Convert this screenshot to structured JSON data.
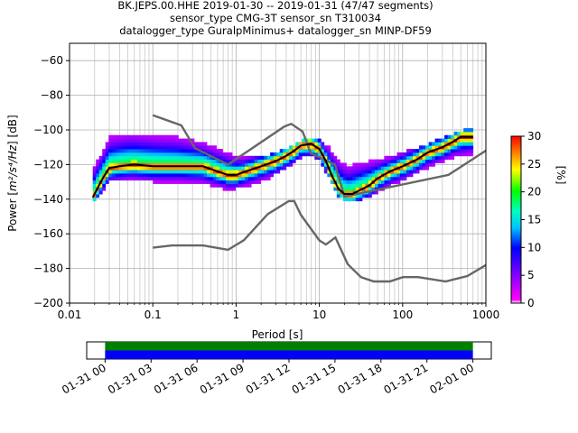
{
  "chart_data": [
    {
      "type": "ppsd_heatmap",
      "title_lines": [
        "BK.JEPS.00.HHE   2019-01-30 -- 2019-01-31  (47/47 segments)",
        "sensor_type CMG-3T sensor_sn T310034",
        "datalogger_type GuralpMinimus+ datalogger_sn MINP-DF59"
      ],
      "xlabel": "Period [s]",
      "ylabel_pre": "Power [",
      "ylabel_math": "m²/s⁴/Hz",
      "ylabel_post": "] [dB]",
      "xscale": "log",
      "xlim": [
        0.01,
        1000
      ],
      "ylim": [
        -200,
        -50
      ],
      "xticks": [
        {
          "v": 0.01,
          "label": "0.01"
        },
        {
          "v": 0.1,
          "label": "0.1"
        },
        {
          "v": 1,
          "label": "1"
        },
        {
          "v": 10,
          "label": "10"
        },
        {
          "v": 100,
          "label": "100"
        },
        {
          "v": 1000,
          "label": "1000"
        }
      ],
      "yticks": [
        {
          "v": -60,
          "label": "−60"
        },
        {
          "v": -80,
          "label": "−80"
        },
        {
          "v": -100,
          "label": "−100"
        },
        {
          "v": -120,
          "label": "−120"
        },
        {
          "v": -140,
          "label": "−140"
        },
        {
          "v": -160,
          "label": "−160"
        },
        {
          "v": -180,
          "label": "−180"
        },
        {
          "v": -200,
          "label": "−200"
        }
      ],
      "grid": true,
      "colorbar": {
        "label": "[%]",
        "range": [
          0,
          30
        ],
        "ticks": [
          {
            "v": 0,
            "label": "0"
          },
          {
            "v": 5,
            "label": "5"
          },
          {
            "v": 10,
            "label": "10"
          },
          {
            "v": 15,
            "label": "15"
          },
          {
            "v": 20,
            "label": "20"
          },
          {
            "v": 25,
            "label": "25"
          },
          {
            "v": 30,
            "label": "30"
          }
        ],
        "colormap_stops": [
          {
            "t": 0.0,
            "color": "#ffffff"
          },
          {
            "t": 0.02,
            "color": "#ff00ff"
          },
          {
            "t": 0.17,
            "color": "#8000ff"
          },
          {
            "t": 0.33,
            "color": "#0000ff"
          },
          {
            "t": 0.45,
            "color": "#00c0ff"
          },
          {
            "t": 0.55,
            "color": "#00ffc0"
          },
          {
            "t": 0.67,
            "color": "#00ff00"
          },
          {
            "t": 0.8,
            "color": "#ffff00"
          },
          {
            "t": 0.9,
            "color": "#ff8000"
          },
          {
            "t": 1.0,
            "color": "#ff0000"
          }
        ]
      },
      "mode_curve": {
        "color": "#000000",
        "points": [
          [
            0.019,
            -139
          ],
          [
            0.022,
            -133
          ],
          [
            0.025,
            -128
          ],
          [
            0.03,
            -122
          ],
          [
            0.04,
            -121
          ],
          [
            0.06,
            -120
          ],
          [
            0.1,
            -121
          ],
          [
            0.2,
            -121
          ],
          [
            0.4,
            -121
          ],
          [
            0.6,
            -124
          ],
          [
            0.8,
            -126
          ],
          [
            1.0,
            -126
          ],
          [
            1.3,
            -124
          ],
          [
            2,
            -121
          ],
          [
            3,
            -118
          ],
          [
            4,
            -115
          ],
          [
            5,
            -112
          ],
          [
            6,
            -109
          ],
          [
            8,
            -108
          ],
          [
            10,
            -111
          ],
          [
            12,
            -118
          ],
          [
            14,
            -126
          ],
          [
            17,
            -134
          ],
          [
            20,
            -137
          ],
          [
            25,
            -137
          ],
          [
            30,
            -135
          ],
          [
            40,
            -132
          ],
          [
            50,
            -128
          ],
          [
            70,
            -124
          ],
          [
            100,
            -121
          ],
          [
            150,
            -117
          ],
          [
            200,
            -113
          ],
          [
            300,
            -110
          ],
          [
            400,
            -107
          ],
          [
            500,
            -104
          ],
          [
            700,
            -104
          ]
        ]
      },
      "density_bands": [
        {
          "x": 0.019,
          "lo": -143,
          "hi": -122
        },
        {
          "x": 0.025,
          "lo": -135,
          "hi": -112
        },
        {
          "x": 0.03,
          "lo": -130,
          "hi": -104
        },
        {
          "x": 0.05,
          "lo": -129,
          "hi": -102
        },
        {
          "x": 0.1,
          "lo": -130,
          "hi": -103
        },
        {
          "x": 0.2,
          "lo": -130,
          "hi": -104
        },
        {
          "x": 0.4,
          "lo": -131,
          "hi": -107
        },
        {
          "x": 0.7,
          "lo": -134,
          "hi": -112
        },
        {
          "x": 1.0,
          "lo": -134,
          "hi": -115
        },
        {
          "x": 1.5,
          "lo": -132,
          "hi": -116
        },
        {
          "x": 2.5,
          "lo": -128,
          "hi": -114
        },
        {
          "x": 4,
          "lo": -122,
          "hi": -111
        },
        {
          "x": 6,
          "lo": -116,
          "hi": -106
        },
        {
          "x": 8,
          "lo": -114,
          "hi": -105
        },
        {
          "x": 10,
          "lo": -118,
          "hi": -106
        },
        {
          "x": 13,
          "lo": -128,
          "hi": -110
        },
        {
          "x": 17,
          "lo": -139,
          "hi": -117
        },
        {
          "x": 22,
          "lo": -142,
          "hi": -121
        },
        {
          "x": 30,
          "lo": -141,
          "hi": -119
        },
        {
          "x": 50,
          "lo": -136,
          "hi": -117
        },
        {
          "x": 100,
          "lo": -129,
          "hi": -113
        },
        {
          "x": 200,
          "lo": -122,
          "hi": -108
        },
        {
          "x": 400,
          "lo": -116,
          "hi": -102
        },
        {
          "x": 700,
          "lo": -114,
          "hi": -98
        }
      ],
      "noise_models": {
        "color": "#666666",
        "high": [
          [
            0.1,
            -91.5
          ],
          [
            0.22,
            -97.4
          ],
          [
            0.32,
            -110.5
          ],
          [
            0.8,
            -120
          ],
          [
            3.8,
            -98
          ],
          [
            4.6,
            -96.5
          ],
          [
            6.3,
            -101
          ],
          [
            7.9,
            -113.5
          ],
          [
            15.4,
            -120
          ],
          [
            20,
            -138.5
          ],
          [
            354.8,
            -126
          ],
          [
            1000,
            -112
          ]
        ],
        "low": [
          [
            0.1,
            -168
          ],
          [
            0.17,
            -166.7
          ],
          [
            0.4,
            -166.7
          ],
          [
            0.8,
            -169.2
          ],
          [
            1.24,
            -163.7
          ],
          [
            2.4,
            -148.6
          ],
          [
            4.3,
            -141.1
          ],
          [
            5,
            -141.1
          ],
          [
            6,
            -149
          ],
          [
            10,
            -163.8
          ],
          [
            12,
            -166.2
          ],
          [
            15.6,
            -162.1
          ],
          [
            21.9,
            -177.5
          ],
          [
            31.6,
            -185
          ],
          [
            45,
            -187.5
          ],
          [
            70,
            -187.5
          ],
          [
            101,
            -185
          ],
          [
            154,
            -185
          ],
          [
            328,
            -187.5
          ],
          [
            600,
            -184.4
          ],
          [
            1000,
            -178
          ]
        ]
      }
    },
    {
      "type": "time_coverage",
      "tick_labels": [
        "01-31 00",
        "01-31 03",
        "01-31 06",
        "01-31 09",
        "01-31 12",
        "01-31 15",
        "01-31 18",
        "01-31 21",
        "02-01 00"
      ],
      "tick_hours": [
        0,
        3,
        6,
        9,
        12,
        15,
        18,
        21,
        24
      ],
      "range_hours": [
        -1.2,
        25.2
      ],
      "coverage_hours": [
        0,
        24
      ],
      "bar_colors": {
        "top": "#008000",
        "bottom": "#0000ff"
      }
    }
  ]
}
